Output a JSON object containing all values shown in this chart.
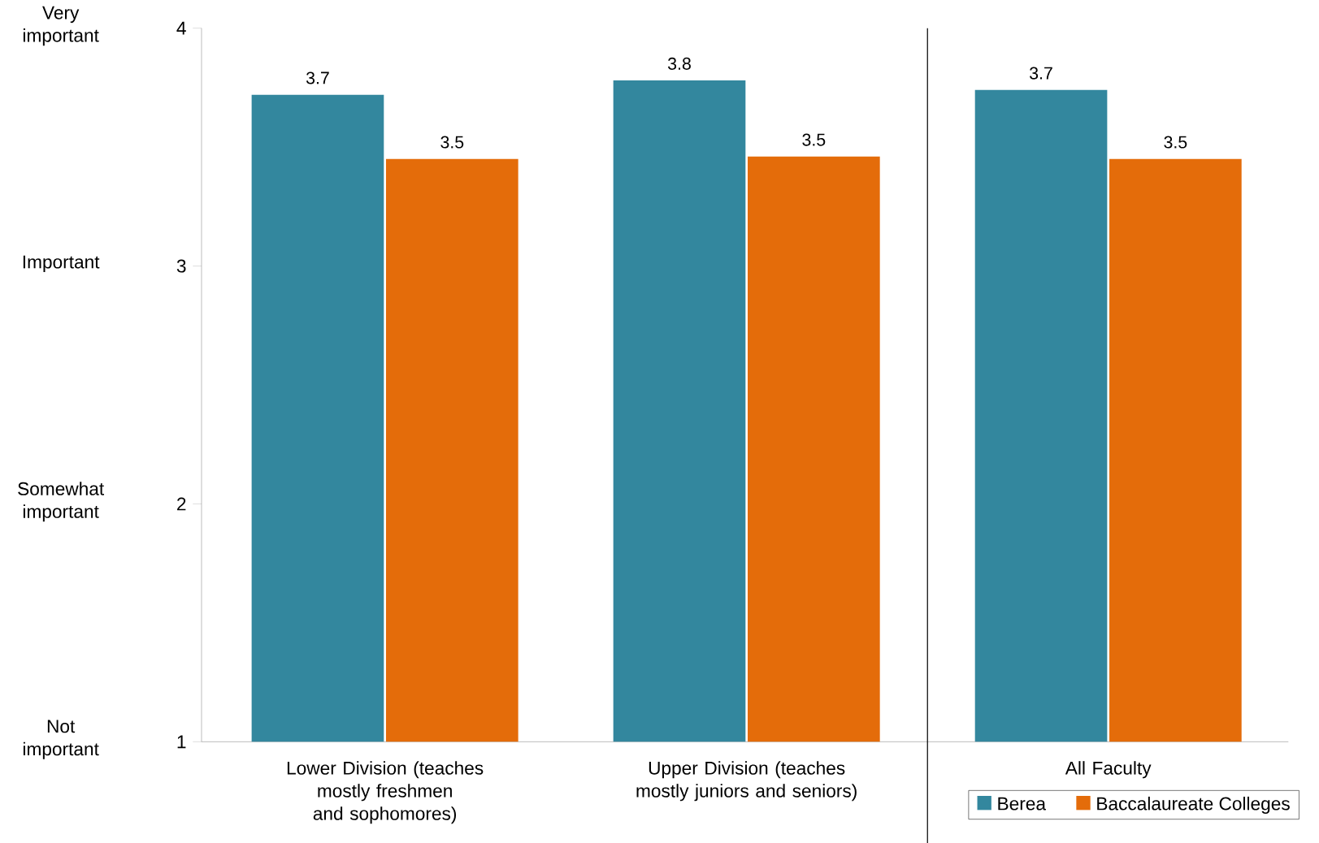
{
  "chart_data": {
    "type": "bar",
    "categories": [
      "Lower Division (teaches mostly freshmen and sophomores)",
      "Upper Division (teaches mostly juniors and seniors)",
      "All Faculty"
    ],
    "series": [
      {
        "name": "Berea",
        "color": "#33879e",
        "values": [
          3.72,
          3.78,
          3.74
        ],
        "value_labels": [
          "3.7",
          "3.8",
          "3.7"
        ]
      },
      {
        "name": "Baccalaureate Colleges",
        "color": "#e46c0a",
        "values": [
          3.45,
          3.46,
          3.45
        ],
        "value_labels": [
          "3.5",
          "3.5",
          "3.5"
        ]
      }
    ],
    "ylim": [
      1,
      4
    ],
    "yticks": [
      1,
      2,
      3,
      4
    ],
    "annotations": [
      "Not important",
      "Somewhat important",
      "Important",
      "Very important"
    ],
    "grid": false,
    "legend": "bottom right"
  }
}
